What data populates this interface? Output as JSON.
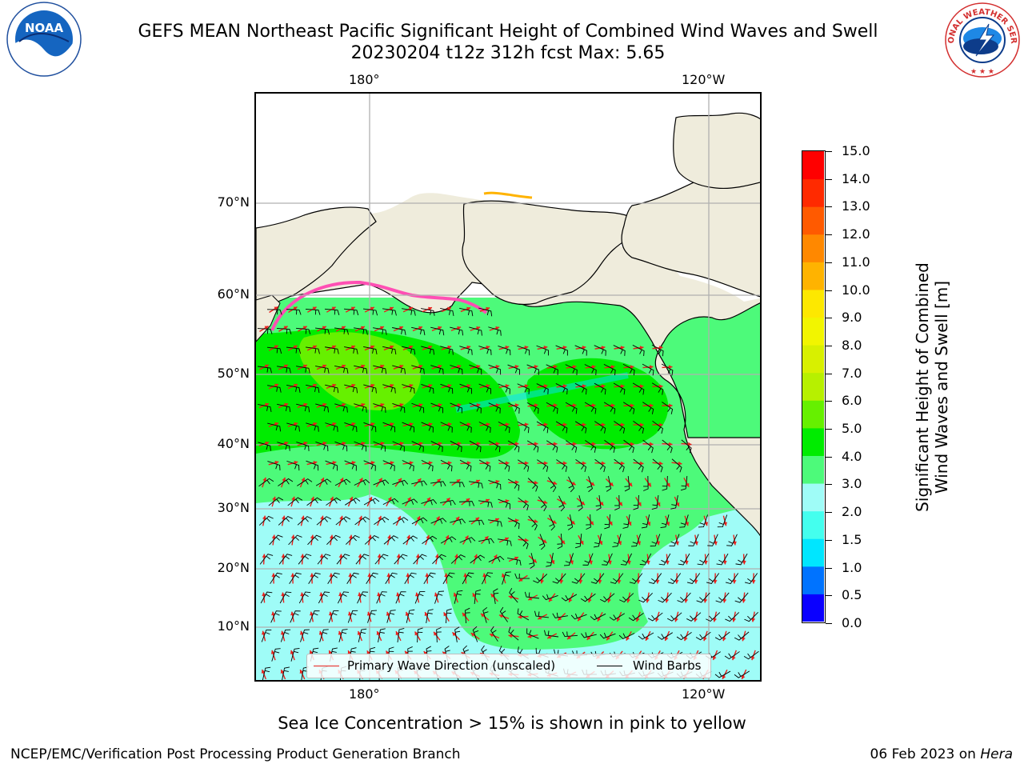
{
  "title": {
    "line1": "GEFS MEAN Northeast Pacific Significant Height of Combined Wind Waves and Swell",
    "line2": "20230204 t12z 312h fcst   Max: 5.65"
  },
  "logos": {
    "left": {
      "icon": "noaa-logo",
      "text": "NOAA"
    },
    "right": {
      "icon": "nws-logo",
      "text": "NATIONAL WEATHER SERVICE"
    }
  },
  "map": {
    "lon_labels": [
      "180°",
      "120°W"
    ],
    "lat_labels": [
      "70°N",
      "60°N",
      "50°N",
      "40°N",
      "30°N",
      "20°N",
      "10°N"
    ],
    "land_color": "#efecdc",
    "grid_color": "#b0b0b0",
    "legend": {
      "primary_wave": {
        "label": "Primary Wave Direction (unscaled)",
        "color": "#e8211c"
      },
      "wind_barbs": {
        "label": "Wind Barbs",
        "color": "#000000"
      }
    }
  },
  "colorbar": {
    "title_line1": "Significant Height of Combined",
    "title_line2": "Wind Waves and Swell [m]",
    "ticks": [
      "15.0",
      "14.0",
      "13.0",
      "12.0",
      "11.0",
      "10.0",
      "9.0",
      "8.0",
      "7.0",
      "6.0",
      "5.0",
      "4.0",
      "3.0",
      "2.0",
      "1.5",
      "1.0",
      "0.5",
      "0.0"
    ],
    "colors_bottom_to_top": [
      "#0a00ff",
      "#0073ff",
      "#00e6ff",
      "#44ffee",
      "#9ffcf7",
      "#4dfa7a",
      "#00ec00",
      "#66f000",
      "#b7f000",
      "#d8f000",
      "#f2f500",
      "#fde800",
      "#ffb300",
      "#ff8800",
      "#ff5a00",
      "#ff2a00",
      "#ff0000"
    ]
  },
  "subcaption": "Sea Ice Concentration > 15% is shown in pink to yellow",
  "footer": {
    "left": "NCEP/EMC/Verification Post Processing Product Generation Branch",
    "date": "06 Feb 2023 on ",
    "host": "Hera"
  }
}
